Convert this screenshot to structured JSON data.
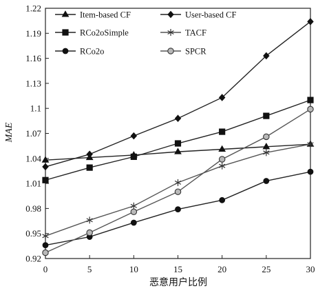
{
  "chart_data": {
    "type": "line",
    "xlabel": "恶意用户比例",
    "ylabel": "MAE",
    "x": [
      0,
      5,
      10,
      15,
      20,
      25,
      30
    ],
    "xlim": [
      0,
      30
    ],
    "ylim": [
      0.92,
      1.22
    ],
    "x_ticks": [
      "0",
      "5",
      "10",
      "15",
      "20",
      "25",
      "30"
    ],
    "y_ticks": [
      "0.92",
      "0.95",
      "0.98",
      "1.01",
      "1.04",
      "1.07",
      "1.1",
      "1.13",
      "1.16",
      "1.19",
      "1.22"
    ],
    "legend_position": "top",
    "grid": false,
    "series": [
      {
        "name": "Item-based CF",
        "marker": "triangle",
        "values": [
          1.038,
          1.041,
          1.044,
          1.048,
          1.051,
          1.054,
          1.057
        ]
      },
      {
        "name": "User-based CF",
        "marker": "diamond",
        "values": [
          1.03,
          1.045,
          1.067,
          1.088,
          1.113,
          1.163,
          1.204
        ]
      },
      {
        "name": "RCo2oSimple",
        "marker": "square",
        "values": [
          1.014,
          1.029,
          1.042,
          1.058,
          1.072,
          1.091,
          1.11
        ]
      },
      {
        "name": "TACF",
        "marker": "asterisk",
        "values": [
          0.947,
          0.966,
          0.983,
          1.011,
          1.031,
          1.047,
          1.057
        ]
      },
      {
        "name": "RCo2o",
        "marker": "filled-circle",
        "values": [
          0.936,
          0.946,
          0.963,
          0.979,
          0.99,
          1.013,
          1.024
        ]
      },
      {
        "name": "SPCR",
        "marker": "open-circle",
        "values": [
          0.927,
          0.951,
          0.976,
          1.0,
          1.039,
          1.066,
          1.099
        ]
      }
    ]
  }
}
